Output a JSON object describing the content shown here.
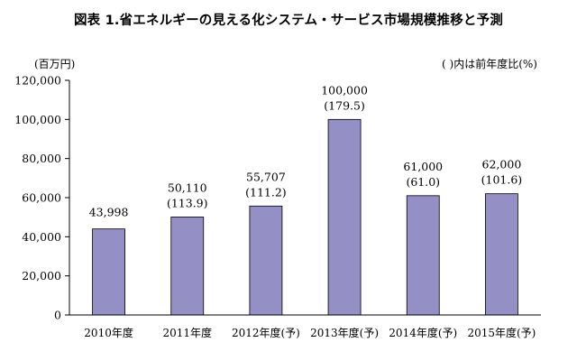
{
  "chart_data": {
    "type": "bar",
    "title": "図表 1.省エネルギーの見える化システム・サービス市場規模推移と予測",
    "ylabel": "(百万円)",
    "xlabel": "",
    "legend_note": "(  )内は前年度比(%)",
    "ylim": [
      0,
      120000
    ],
    "yticks": [
      0,
      20000,
      40000,
      60000,
      80000,
      100000,
      120000
    ],
    "ytick_labels": [
      "0",
      "20,000",
      "40,000",
      "60,000",
      "80,000",
      "100,000",
      "120,000"
    ],
    "categories": [
      "2010年度",
      "2011年度",
      "2012年度(予)",
      "2013年度(予)",
      "2014年度(予)",
      "2015年度(予)"
    ],
    "values": [
      43998,
      50110,
      55707,
      100000,
      61000,
      62000
    ],
    "value_labels": [
      "43,998",
      "50,110",
      "55,707",
      "100,000",
      "61,000",
      "62,000"
    ],
    "yoy_labels": [
      "",
      "(113.9)",
      "(111.2)",
      "(179.5)",
      "(61.0)",
      "(101.6)"
    ],
    "bar_color": "#9490c6",
    "bar_edge_color": "#000000",
    "grid": false
  }
}
